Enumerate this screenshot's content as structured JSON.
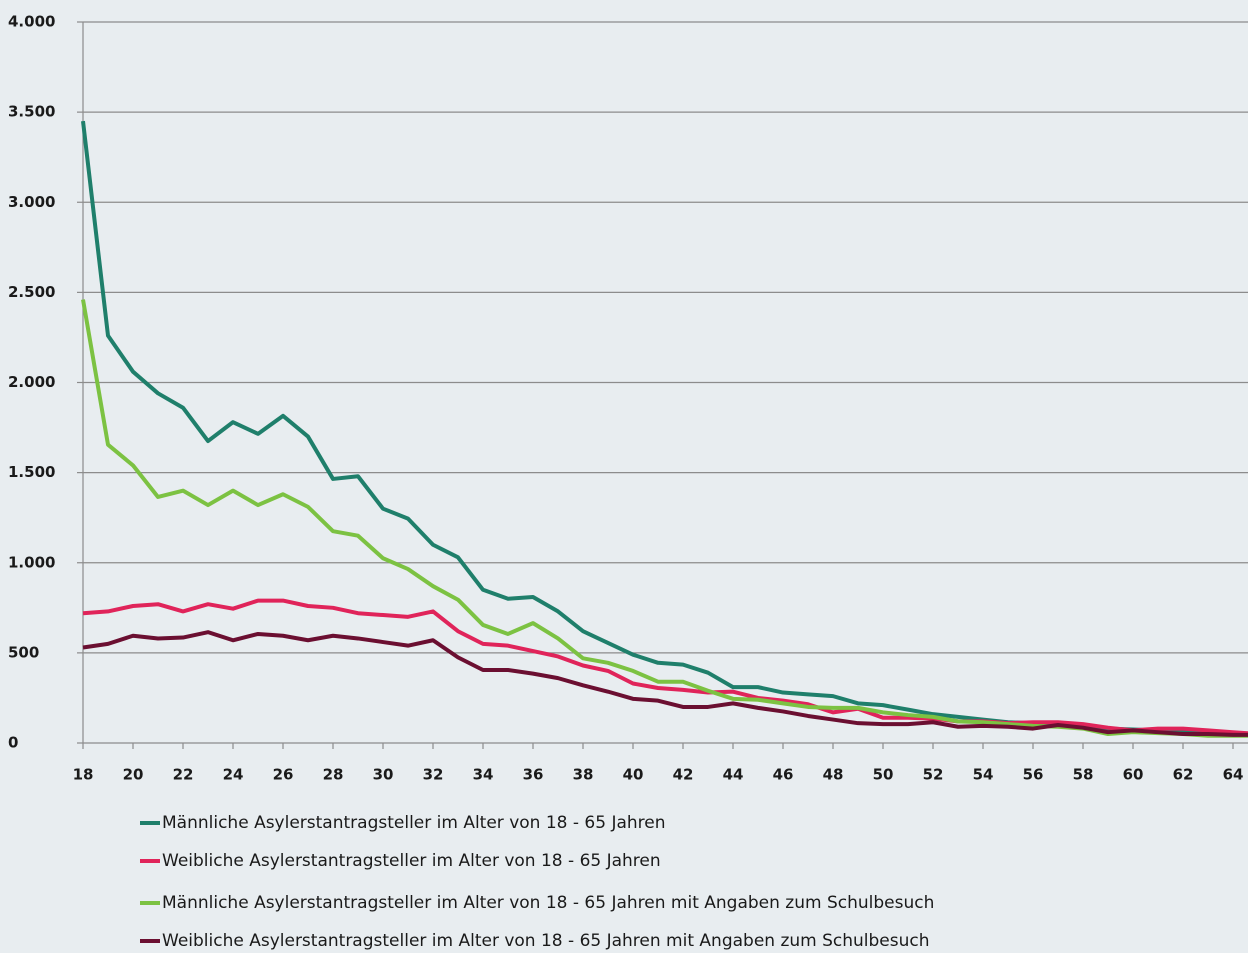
{
  "chart_data": {
    "type": "line",
    "x": [
      18,
      19,
      20,
      21,
      22,
      23,
      24,
      25,
      26,
      27,
      28,
      29,
      30,
      31,
      32,
      33,
      34,
      35,
      36,
      37,
      38,
      39,
      40,
      41,
      42,
      43,
      44,
      45,
      46,
      47,
      48,
      49,
      50,
      51,
      52,
      53,
      54,
      55,
      56,
      57,
      58,
      59,
      60,
      61,
      62,
      63,
      64,
      65
    ],
    "xlim": [
      18,
      64.6
    ],
    "xticks": [
      18,
      20,
      22,
      24,
      26,
      28,
      30,
      32,
      34,
      36,
      38,
      40,
      42,
      44,
      46,
      48,
      50,
      52,
      54,
      56,
      58,
      60,
      62,
      64
    ],
    "ylim": [
      0,
      4000
    ],
    "yticks": [
      0,
      500,
      {
        "value": 1000,
        "label": "1.000"
      },
      {
        "value": 1500,
        "label": "1.500"
      },
      {
        "value": 2000,
        "label": "2.000"
      },
      {
        "value": 2500,
        "label": "2.500"
      },
      {
        "value": 3000,
        "label": "3.000"
      },
      {
        "value": 3500,
        "label": "3.500"
      },
      {
        "value": 4000,
        "label": "4.000"
      }
    ],
    "grid": true,
    "series": [
      {
        "name": "Männliche Asylerstantragsteller im Alter von 18 - 65 Jahren",
        "color": "#1f7f6b",
        "values": [
          3450,
          2260,
          2060,
          1940,
          1860,
          1675,
          1780,
          1715,
          1815,
          1700,
          1465,
          1480,
          1300,
          1245,
          1100,
          1030,
          850,
          800,
          810,
          730,
          620,
          555,
          490,
          445,
          435,
          390,
          310,
          310,
          280,
          270,
          260,
          220,
          210,
          185,
          160,
          145,
          130,
          115,
          110,
          100,
          90,
          80,
          75,
          70,
          60,
          55,
          50,
          45
        ]
      },
      {
        "name": "Weibliche Asylerstantragsteller im Alter von 18 - 65 Jahren",
        "color": "#e0245a",
        "values": [
          720,
          730,
          760,
          770,
          730,
          770,
          745,
          790,
          790,
          760,
          750,
          720,
          710,
          700,
          730,
          620,
          550,
          540,
          510,
          480,
          430,
          400,
          330,
          305,
          295,
          280,
          285,
          250,
          235,
          215,
          170,
          190,
          140,
          140,
          135,
          120,
          120,
          110,
          115,
          115,
          105,
          85,
          70,
          80,
          80,
          70,
          60,
          50
        ]
      },
      {
        "name": "Männliche Asylerstantragsteller im Alter von 18 - 65 Jahren mit Angaben zum Schulbesuch",
        "color": "#7cc242",
        "values": [
          2460,
          1655,
          1540,
          1365,
          1400,
          1320,
          1400,
          1320,
          1380,
          1310,
          1175,
          1150,
          1025,
          965,
          870,
          795,
          655,
          605,
          665,
          580,
          470,
          445,
          400,
          340,
          340,
          290,
          245,
          240,
          220,
          200,
          195,
          195,
          170,
          155,
          145,
          120,
          115,
          105,
          95,
          90,
          80,
          50,
          60,
          55,
          50,
          40,
          40,
          40
        ]
      },
      {
        "name": "Weibliche Asylerstantragsteller im Alter von 18 - 65 Jahren mit Angaben zum Schulbesuch",
        "color": "#6b0f31",
        "values": [
          530,
          550,
          595,
          580,
          585,
          615,
          570,
          605,
          595,
          570,
          595,
          580,
          560,
          540,
          570,
          475,
          405,
          405,
          385,
          360,
          320,
          285,
          245,
          235,
          200,
          200,
          220,
          195,
          175,
          150,
          130,
          110,
          105,
          105,
          115,
          90,
          95,
          90,
          80,
          100,
          85,
          60,
          70,
          60,
          50,
          50,
          45,
          45
        ]
      }
    ]
  }
}
